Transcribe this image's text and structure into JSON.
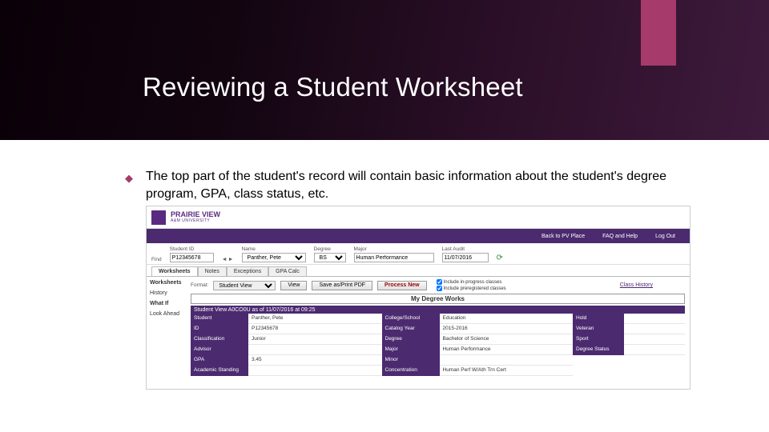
{
  "slide": {
    "title": "Reviewing a Student Worksheet",
    "bullet_glyph": "◆",
    "description": "The top part of the student's record will contain basic information about the student's degree program, GPA, class status, etc.",
    "brace": "{"
  },
  "colors": {
    "dark_band_start": "#0a0008",
    "dark_band_end": "#3e1a3c",
    "accent": "#a63a6a",
    "purple": "#4b2a6f"
  },
  "shot": {
    "uni": {
      "name": "PRAIRIE VIEW",
      "sub": "A&M UNIVERSITY"
    },
    "nav": {
      "back": "Back to PV Place",
      "faq": "FAQ and Help",
      "logout": "Log Out"
    },
    "filter": {
      "find_label": "Find",
      "sid_label": "Student ID",
      "sid_value": "P12345678",
      "name_label": "Name",
      "name_value": "Panther, Pete",
      "degree_label": "Degree",
      "degree_value": "BS",
      "major_label": "Major",
      "major_value": "Human Performance",
      "audit_label": "Last Audit",
      "audit_value": "11/07/2016"
    },
    "tabs": {
      "t1": "Worksheets",
      "t2": "Notes",
      "t3": "Exceptions",
      "t4": "GPA Calc"
    },
    "side": {
      "s1": "Worksheets",
      "s2": "What If",
      "s3": "History",
      "s4": "Look Ahead"
    },
    "toolbar": {
      "format_label": "Format:",
      "format_value": "Student View",
      "view": "View",
      "save": "Save as/Print PDF",
      "process": "Process New",
      "chk1": "Include in-progress classes",
      "chk2": "Include preregistered classes",
      "classhist": "Class History"
    },
    "mdw": "My Degree Works",
    "svbar": "Student View    A0CO0U as of 11/07/2016 at 09:25",
    "left": {
      "student_l": "Student",
      "student_v": "Panther, Pete",
      "id_l": "ID",
      "id_v": "P12345678",
      "class_l": "Classification",
      "class_v": "Junior",
      "adv_l": "Advisor",
      "adv_v": "",
      "gpa_l": "GPA",
      "gpa_v": "3.45",
      "acad_l": "Academic Standing",
      "acad_v": ""
    },
    "mid": {
      "coll_l": "College/School",
      "coll_v": "Education",
      "cat_l": "Catalog Year",
      "cat_v": "2015-2016",
      "deg_l": "Degree",
      "deg_v": "Bachelor of Science",
      "maj_l": "Major",
      "maj_v": "Human Performance",
      "min_l": "Minor",
      "min_v": "",
      "conc_l": "Concentration",
      "conc_v": "Human Perf W/Ath Trn Cert"
    },
    "right": {
      "hold_l": "Hold",
      "hold_v": "",
      "vet_l": "Veteran",
      "vet_v": "",
      "sport_l": "Sport",
      "sport_v": "",
      "stat_l": "Degree Status",
      "stat_v": ""
    }
  }
}
